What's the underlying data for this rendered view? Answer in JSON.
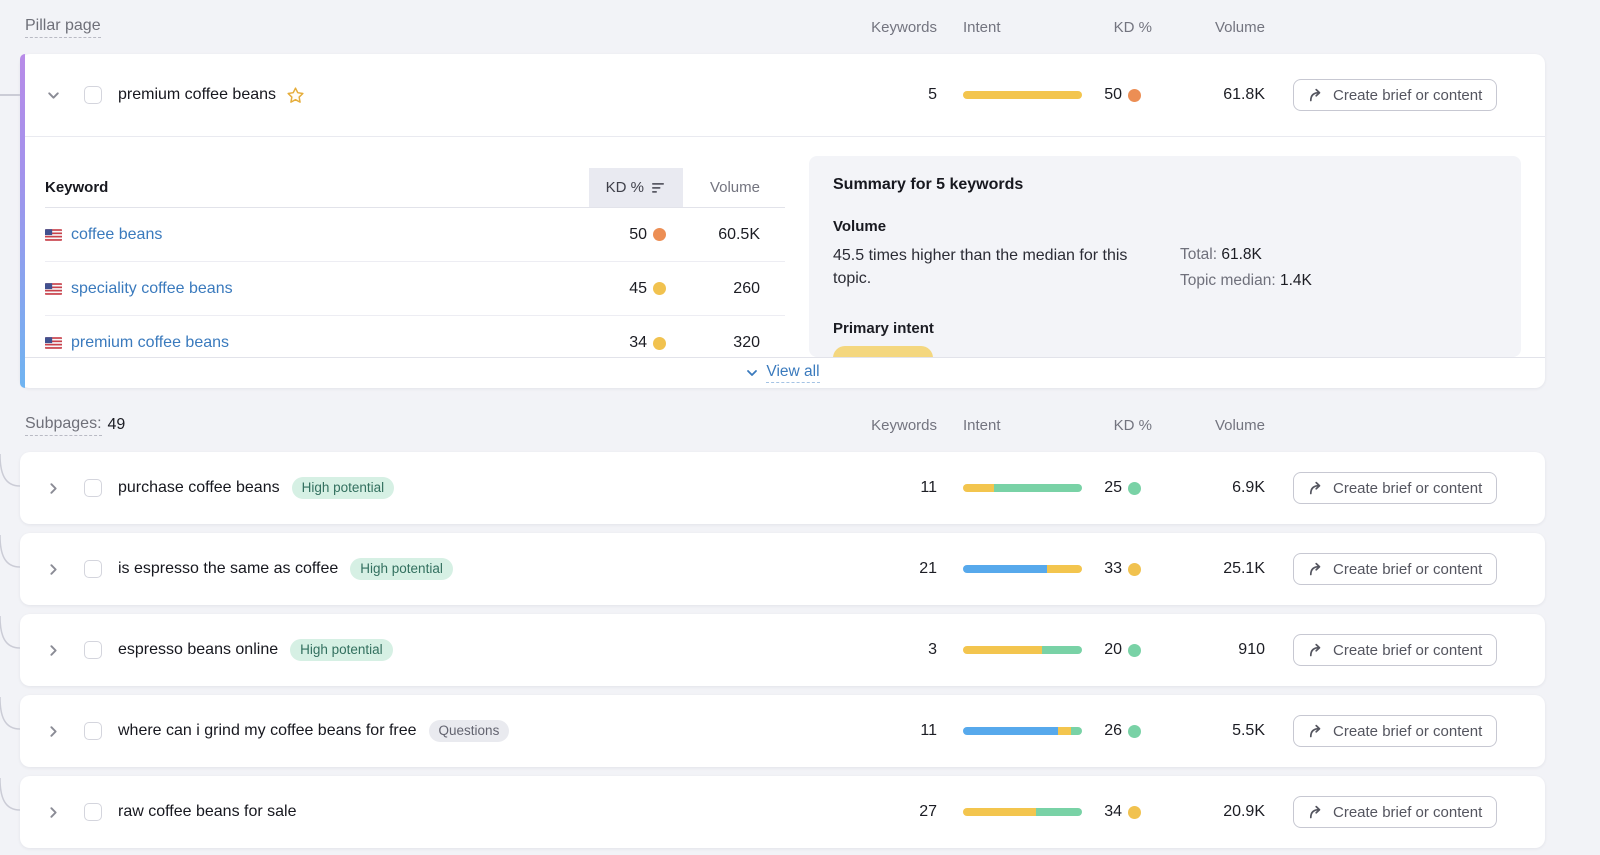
{
  "header": {
    "pillar_label": "Pillar page",
    "columns": {
      "keywords": "Keywords",
      "intent": "Intent",
      "kd": "KD %",
      "volume": "Volume"
    }
  },
  "subpages_header": {
    "label": "Subpages:",
    "count": "49",
    "columns": {
      "keywords": "Keywords",
      "intent": "Intent",
      "kd": "KD %",
      "volume": "Volume"
    }
  },
  "actions": {
    "create_brief": "Create brief or content",
    "view_all": "View all"
  },
  "colors": {
    "intent_commercial": "#f3c54e",
    "intent_transactional": "#79d2a6",
    "intent_informational": "#57a9ec",
    "kd_easy": "#79d2a6",
    "kd_possible": "#f1c24f",
    "kd_difficult": "#ec8e54",
    "accent_gradient_top": "#b88be8",
    "accent_gradient_bottom": "#6fb4f1"
  },
  "pillar": {
    "title": "premium coffee beans",
    "keywords_count": "5",
    "intent_segments": [
      {
        "color": "#f3c54e",
        "pct": 100
      }
    ],
    "kd": "50",
    "kd_color": "#ec8e54",
    "volume": "61.8K",
    "keyword_table": {
      "columns": {
        "keyword": "Keyword",
        "kd": "KD %",
        "volume": "Volume"
      },
      "rows": [
        {
          "keyword": "coffee beans",
          "kd": "50",
          "kd_color": "#ec8e54",
          "volume": "60.5K"
        },
        {
          "keyword": "speciality coffee beans",
          "kd": "45",
          "kd_color": "#f1c24f",
          "volume": "260"
        },
        {
          "keyword": "premium coffee beans",
          "kd": "34",
          "kd_color": "#f1c24f",
          "volume": "320"
        }
      ]
    },
    "summary": {
      "title": "Summary for 5 keywords",
      "volume_heading": "Volume",
      "volume_note": "45.5 times higher than the median for this topic.",
      "total_label": "Total:",
      "total_value": "61.8K",
      "topic_median_label": "Topic median:",
      "topic_median_value": "1.4K",
      "primary_intent_heading": "Primary intent",
      "primary_intent_pill_color": "#f4d77f"
    }
  },
  "subpages": [
    {
      "title": "purchase coffee beans",
      "badge": "High potential",
      "keywords_count": "11",
      "intent_segments": [
        {
          "color": "#f3c54e",
          "pct": 26
        },
        {
          "color": "#79d2a6",
          "pct": 74
        }
      ],
      "kd": "25",
      "kd_color": "#79d2a6",
      "volume": "6.9K"
    },
    {
      "title": "is espresso the same as coffee",
      "badge": "High potential",
      "keywords_count": "21",
      "intent_segments": [
        {
          "color": "#57a9ec",
          "pct": 71
        },
        {
          "color": "#f3c54e",
          "pct": 29
        }
      ],
      "kd": "33",
      "kd_color": "#f1c24f",
      "volume": "25.1K"
    },
    {
      "title": "espresso beans online",
      "badge": "High potential",
      "keywords_count": "3",
      "intent_segments": [
        {
          "color": "#f3c54e",
          "pct": 66
        },
        {
          "color": "#79d2a6",
          "pct": 34
        }
      ],
      "kd": "20",
      "kd_color": "#79d2a6",
      "volume": "910"
    },
    {
      "title": "where can i grind my coffee beans for free",
      "badge": "Questions",
      "keywords_count": "11",
      "intent_segments": [
        {
          "color": "#57a9ec",
          "pct": 80
        },
        {
          "color": "#f3c54e",
          "pct": 11
        },
        {
          "color": "#79d2a6",
          "pct": 9
        }
      ],
      "kd": "26",
      "kd_color": "#79d2a6",
      "volume": "5.5K"
    },
    {
      "title": "raw coffee beans for sale",
      "badge": "",
      "keywords_count": "27",
      "intent_segments": [
        {
          "color": "#f3c54e",
          "pct": 61
        },
        {
          "color": "#79d2a6",
          "pct": 39
        }
      ],
      "kd": "34",
      "kd_color": "#f1c24f",
      "volume": "20.9K"
    }
  ]
}
